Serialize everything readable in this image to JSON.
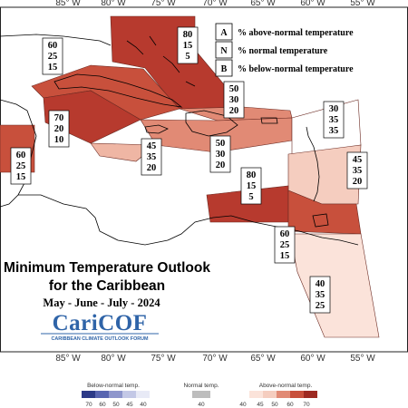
{
  "map": {
    "title_line1": "Minimum Temperature Outlook",
    "title_line2": "for the Caribbean",
    "period": "May - June - July - 2024",
    "longitude_labels": [
      "85° W",
      "80° W",
      "75° W",
      "70° W",
      "65° W",
      "60° W",
      "55° W"
    ],
    "logo_text": "CariCOF",
    "logo_subtitle": "CARIBBEAN CLIMATE OUTLOOK FORUM"
  },
  "legend": {
    "items": [
      {
        "key": "A",
        "label": "% above-normal temperature"
      },
      {
        "key": "N",
        "label": "% normal temperature"
      },
      {
        "key": "B",
        "label": "% below-normal temperature"
      }
    ]
  },
  "regions": [
    {
      "id": "bahamas",
      "above": "80",
      "normal": "15",
      "below": "5",
      "color": "#b73a2e"
    },
    {
      "id": "cuba",
      "above": "60",
      "normal": "25",
      "below": "15",
      "color": "#c8503c"
    },
    {
      "id": "jamaica-cayman",
      "above": "70",
      "normal": "20",
      "below": "10",
      "color": "#b73a2e"
    },
    {
      "id": "turks-caicos",
      "above": "50",
      "normal": "30",
      "below": "20",
      "color": "#e18a75"
    },
    {
      "id": "belize-yucatan",
      "above": "60",
      "normal": "25",
      "below": "15",
      "color": "#c8503c"
    },
    {
      "id": "hispaniola",
      "above": "50",
      "normal": "30",
      "below": "20",
      "color": "#e18a75"
    },
    {
      "id": "jamaica-south",
      "above": "45",
      "normal": "35",
      "below": "20",
      "color": "#efb6a4"
    },
    {
      "id": "leeward-north",
      "above": "30",
      "normal": "35",
      "below": "35",
      "color": "#ffffff"
    },
    {
      "id": "windward-islands",
      "above": "45",
      "normal": "35",
      "below": "20",
      "color": "#f5cdbf"
    },
    {
      "id": "abc-islands",
      "above": "80",
      "normal": "15",
      "below": "5",
      "color": "#b73a2e"
    },
    {
      "id": "trinidad-tobago",
      "above": "60",
      "normal": "25",
      "below": "15",
      "color": "#c8503c"
    },
    {
      "id": "guianas",
      "above": "40",
      "normal": "35",
      "below": "25",
      "color": "#fbe3da"
    }
  ],
  "colorbar": {
    "below_label": "Below-normal temp.",
    "normal_label": "Normal temp.",
    "above_label": "Above-normal temp.",
    "below_ticks": [
      "70",
      "60",
      "50",
      "45",
      "40"
    ],
    "normal_ticks": [
      "40"
    ],
    "above_ticks": [
      "40",
      "45",
      "50",
      "60",
      "70"
    ],
    "below_colors": [
      "#2c3a87",
      "#5865b0",
      "#8e96cc",
      "#c3c8e6",
      "#e8eaf6"
    ],
    "normal_color": "#bdbdbd",
    "above_colors": [
      "#fbe3da",
      "#f5cdbf",
      "#e18a75",
      "#c8503c",
      "#9d2a22"
    ]
  }
}
